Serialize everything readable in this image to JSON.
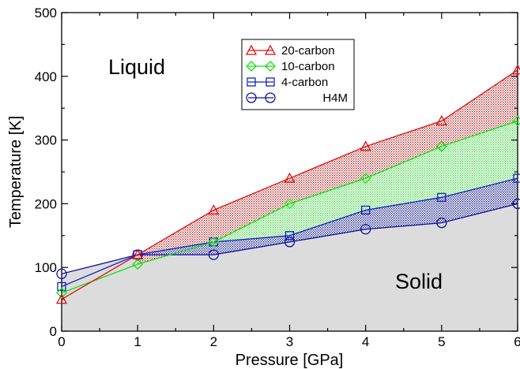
{
  "chart_data": {
    "type": "line",
    "title": "",
    "xlabel": "Pressure  [GPa]",
    "ylabel": "Temperature  [K]",
    "xlim": [
      0,
      6
    ],
    "ylim": [
      0,
      500
    ],
    "x_ticks": [
      "0",
      "1",
      "2",
      "3",
      "4",
      "5",
      "6"
    ],
    "y_ticks": [
      "0",
      "100",
      "200",
      "300",
      "400",
      "500"
    ],
    "grid": false,
    "legend_position": "top-center",
    "annotations": {
      "liquid": "Liquid",
      "solid": "Solid"
    },
    "series": [
      {
        "name": "20-carbon",
        "marker": "triangle",
        "color": "#e01010",
        "x": [
          0,
          1,
          2,
          3,
          4,
          5,
          6
        ],
        "y": [
          50,
          120,
          190,
          240,
          290,
          330,
          410
        ]
      },
      {
        "name": "10-carbon",
        "marker": "diamond",
        "color": "#10e010",
        "x": [
          0,
          1,
          2,
          3,
          4,
          5,
          6
        ],
        "y": [
          60,
          105,
          140,
          200,
          240,
          290,
          330
        ]
      },
      {
        "name": "4-carbon",
        "marker": "square",
        "color": "#1020c0",
        "x": [
          0,
          1,
          2,
          3,
          4,
          5,
          6
        ],
        "y": [
          70,
          120,
          140,
          150,
          190,
          210,
          240
        ]
      },
      {
        "name": "H4M",
        "marker": "circle",
        "color": "#1010a0",
        "x": [
          0,
          1,
          2,
          3,
          4,
          5,
          6
        ],
        "y": [
          90,
          120,
          120,
          140,
          160,
          170,
          200
        ]
      }
    ],
    "solid_fill_color": "#dcdcdc"
  }
}
